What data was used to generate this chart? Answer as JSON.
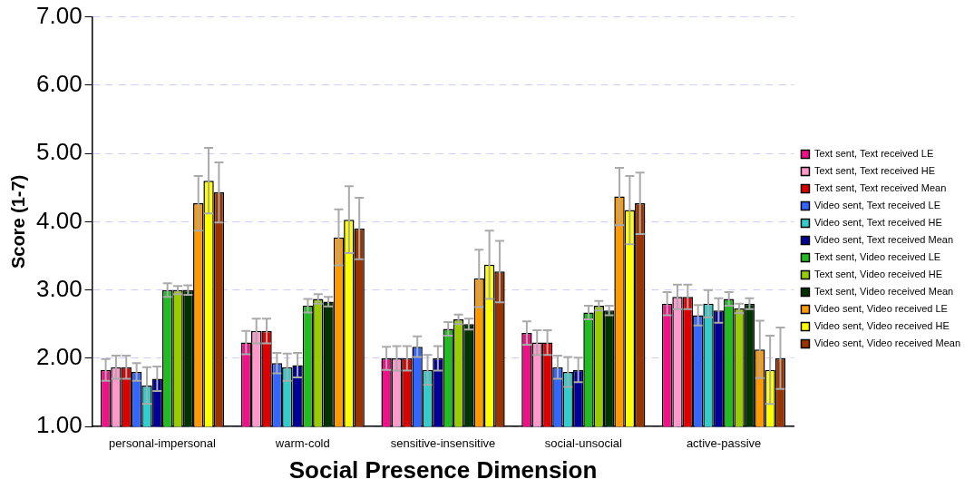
{
  "chart_data": {
    "type": "bar",
    "xlabel": "Social Presence Dimension",
    "ylabel": "Score (1-7)",
    "categories": [
      "personal-impersonal",
      "warm-cold",
      "sensitive-insensitive",
      "social-unsocial",
      "active-passive"
    ],
    "ylim": [
      1,
      7
    ],
    "yticks": [
      {
        "value": 1,
        "label": "1.00"
      },
      {
        "value": 2,
        "label": "2.00"
      },
      {
        "value": 3,
        "label": "3.00"
      },
      {
        "value": 4,
        "label": "4.00"
      },
      {
        "value": 5,
        "label": "5.00"
      },
      {
        "value": 6,
        "label": "6.00"
      },
      {
        "value": 7,
        "label": "7.00"
      }
    ],
    "grid": "y",
    "legend": "right",
    "series": [
      {
        "name": "Text sent, Text received LE",
        "color": "#ee1188",
        "values": [
          1.83,
          2.23,
          2.0,
          2.37,
          2.8
        ],
        "errors": [
          0.16,
          0.17,
          0.17,
          0.17,
          0.17
        ]
      },
      {
        "name": "Text sent, Text received HE",
        "color": "#ff99cc",
        "values": [
          1.87,
          2.4,
          2.0,
          2.23,
          2.9
        ],
        "errors": [
          0.17,
          0.18,
          0.18,
          0.18,
          0.18
        ]
      },
      {
        "name": "Text sent, Text received Mean",
        "color": "#dd0000",
        "values": [
          1.87,
          2.4,
          2.0,
          2.23,
          2.9
        ],
        "errors": [
          0.17,
          0.18,
          0.18,
          0.18,
          0.18
        ]
      },
      {
        "name": "Video sent, Text received LE",
        "color": "#3366ff",
        "values": [
          1.8,
          1.93,
          2.17,
          1.87,
          2.63
        ],
        "errors": [
          0.13,
          0.15,
          0.15,
          0.17,
          0.15
        ]
      },
      {
        "name": "Video sent, Text received HE",
        "color": "#33cccc",
        "values": [
          1.6,
          1.87,
          1.83,
          1.8,
          2.8
        ],
        "errors": [
          0.27,
          0.2,
          0.22,
          0.22,
          0.2
        ]
      },
      {
        "name": "Video sent, Text received Mean",
        "color": "#000099",
        "values": [
          1.7,
          1.9,
          2.0,
          1.83,
          2.7
        ],
        "errors": [
          0.18,
          0.18,
          0.18,
          0.18,
          0.18
        ]
      },
      {
        "name": "Text sent, Video received LE",
        "color": "#22bb22",
        "values": [
          3.0,
          2.77,
          2.43,
          2.67,
          2.87
        ],
        "errors": [
          0.1,
          0.1,
          0.1,
          0.1,
          0.1
        ]
      },
      {
        "name": "Text sent, Video received HE",
        "color": "#99cc00",
        "values": [
          3.0,
          2.87,
          2.57,
          2.77,
          2.73
        ],
        "errors": [
          0.06,
          0.07,
          0.07,
          0.07,
          0.07
        ]
      },
      {
        "name": "Text sent, Video received Mean",
        "color": "#003300",
        "values": [
          3.0,
          2.83,
          2.5,
          2.7,
          2.8
        ],
        "errors": [
          0.07,
          0.07,
          0.08,
          0.07,
          0.08
        ]
      },
      {
        "name": "Video sent, Video received LE",
        "color": "#ff9900",
        "values": [
          4.27,
          3.77,
          3.17,
          4.37,
          2.13
        ],
        "errors": [
          0.4,
          0.41,
          0.42,
          0.42,
          0.42
        ]
      },
      {
        "name": "Video sent, Video received HE",
        "color": "#ffff00",
        "values": [
          4.6,
          4.03,
          3.37,
          4.17,
          1.83
        ],
        "errors": [
          0.48,
          0.49,
          0.5,
          0.5,
          0.5
        ]
      },
      {
        "name": "Video sent, Video received Mean",
        "color": "#993300",
        "values": [
          4.43,
          3.9,
          3.27,
          4.27,
          2.0
        ],
        "errors": [
          0.44,
          0.45,
          0.45,
          0.45,
          0.45
        ]
      }
    ]
  }
}
